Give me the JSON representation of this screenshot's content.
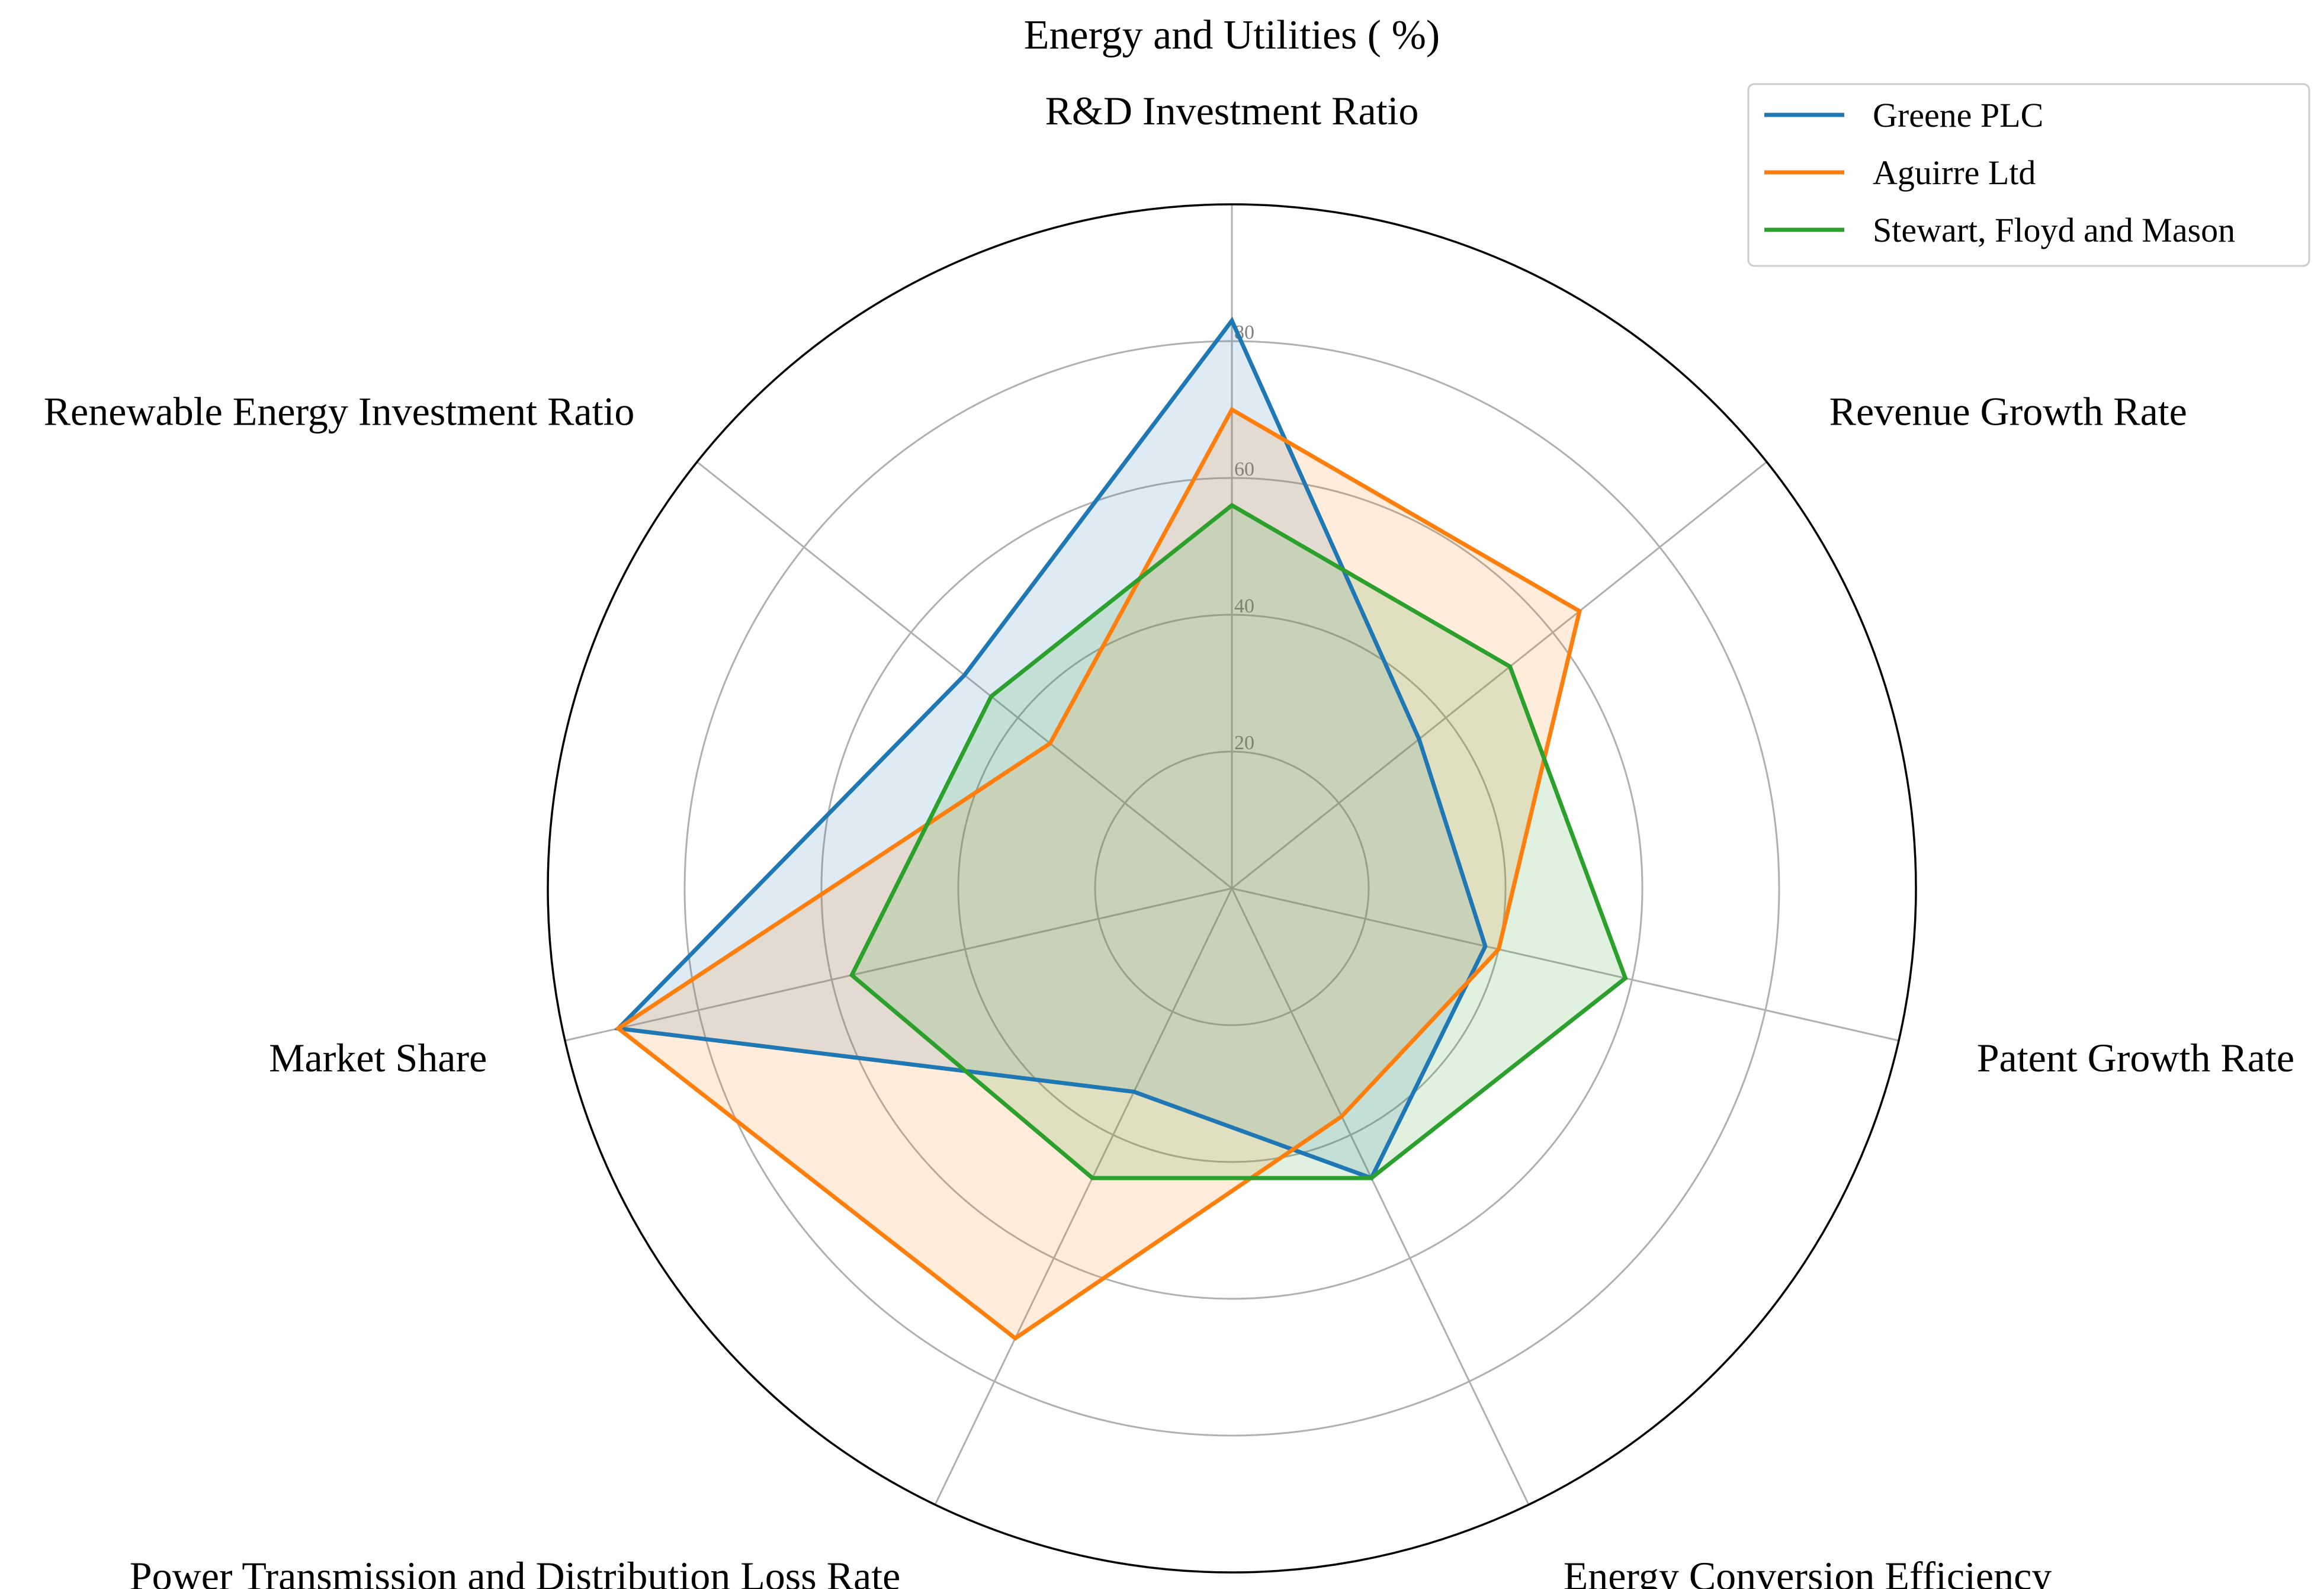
{
  "chart_data": {
    "type": "radar",
    "title": "Energy and Utilities ( %)",
    "axes": [
      "R&D Investment Ratio",
      "Revenue Growth Rate",
      "Patent Growth Rate",
      "Energy Conversion Efficiency",
      "Power Transmission and Distribution Loss Rate",
      "Market Share",
      "Renewable Energy Investment Ratio"
    ],
    "rlim": [
      0,
      100
    ],
    "ticks": [
      20,
      40,
      60,
      80
    ],
    "grid": true,
    "legend_position": "top-right",
    "series": [
      {
        "name": "Greene PLC",
        "color": "#1f77b4",
        "values": [
          83,
          35,
          38,
          47,
          33,
          92,
          50
        ]
      },
      {
        "name": "Aguirre Ltd",
        "color": "#ff7f0e",
        "values": [
          70,
          65,
          40,
          37,
          73,
          92,
          34
        ]
      },
      {
        "name": "Stewart, Floyd and Mason",
        "color": "#2ca02c",
        "values": [
          56,
          52,
          59,
          47,
          47,
          57,
          45
        ]
      }
    ]
  }
}
